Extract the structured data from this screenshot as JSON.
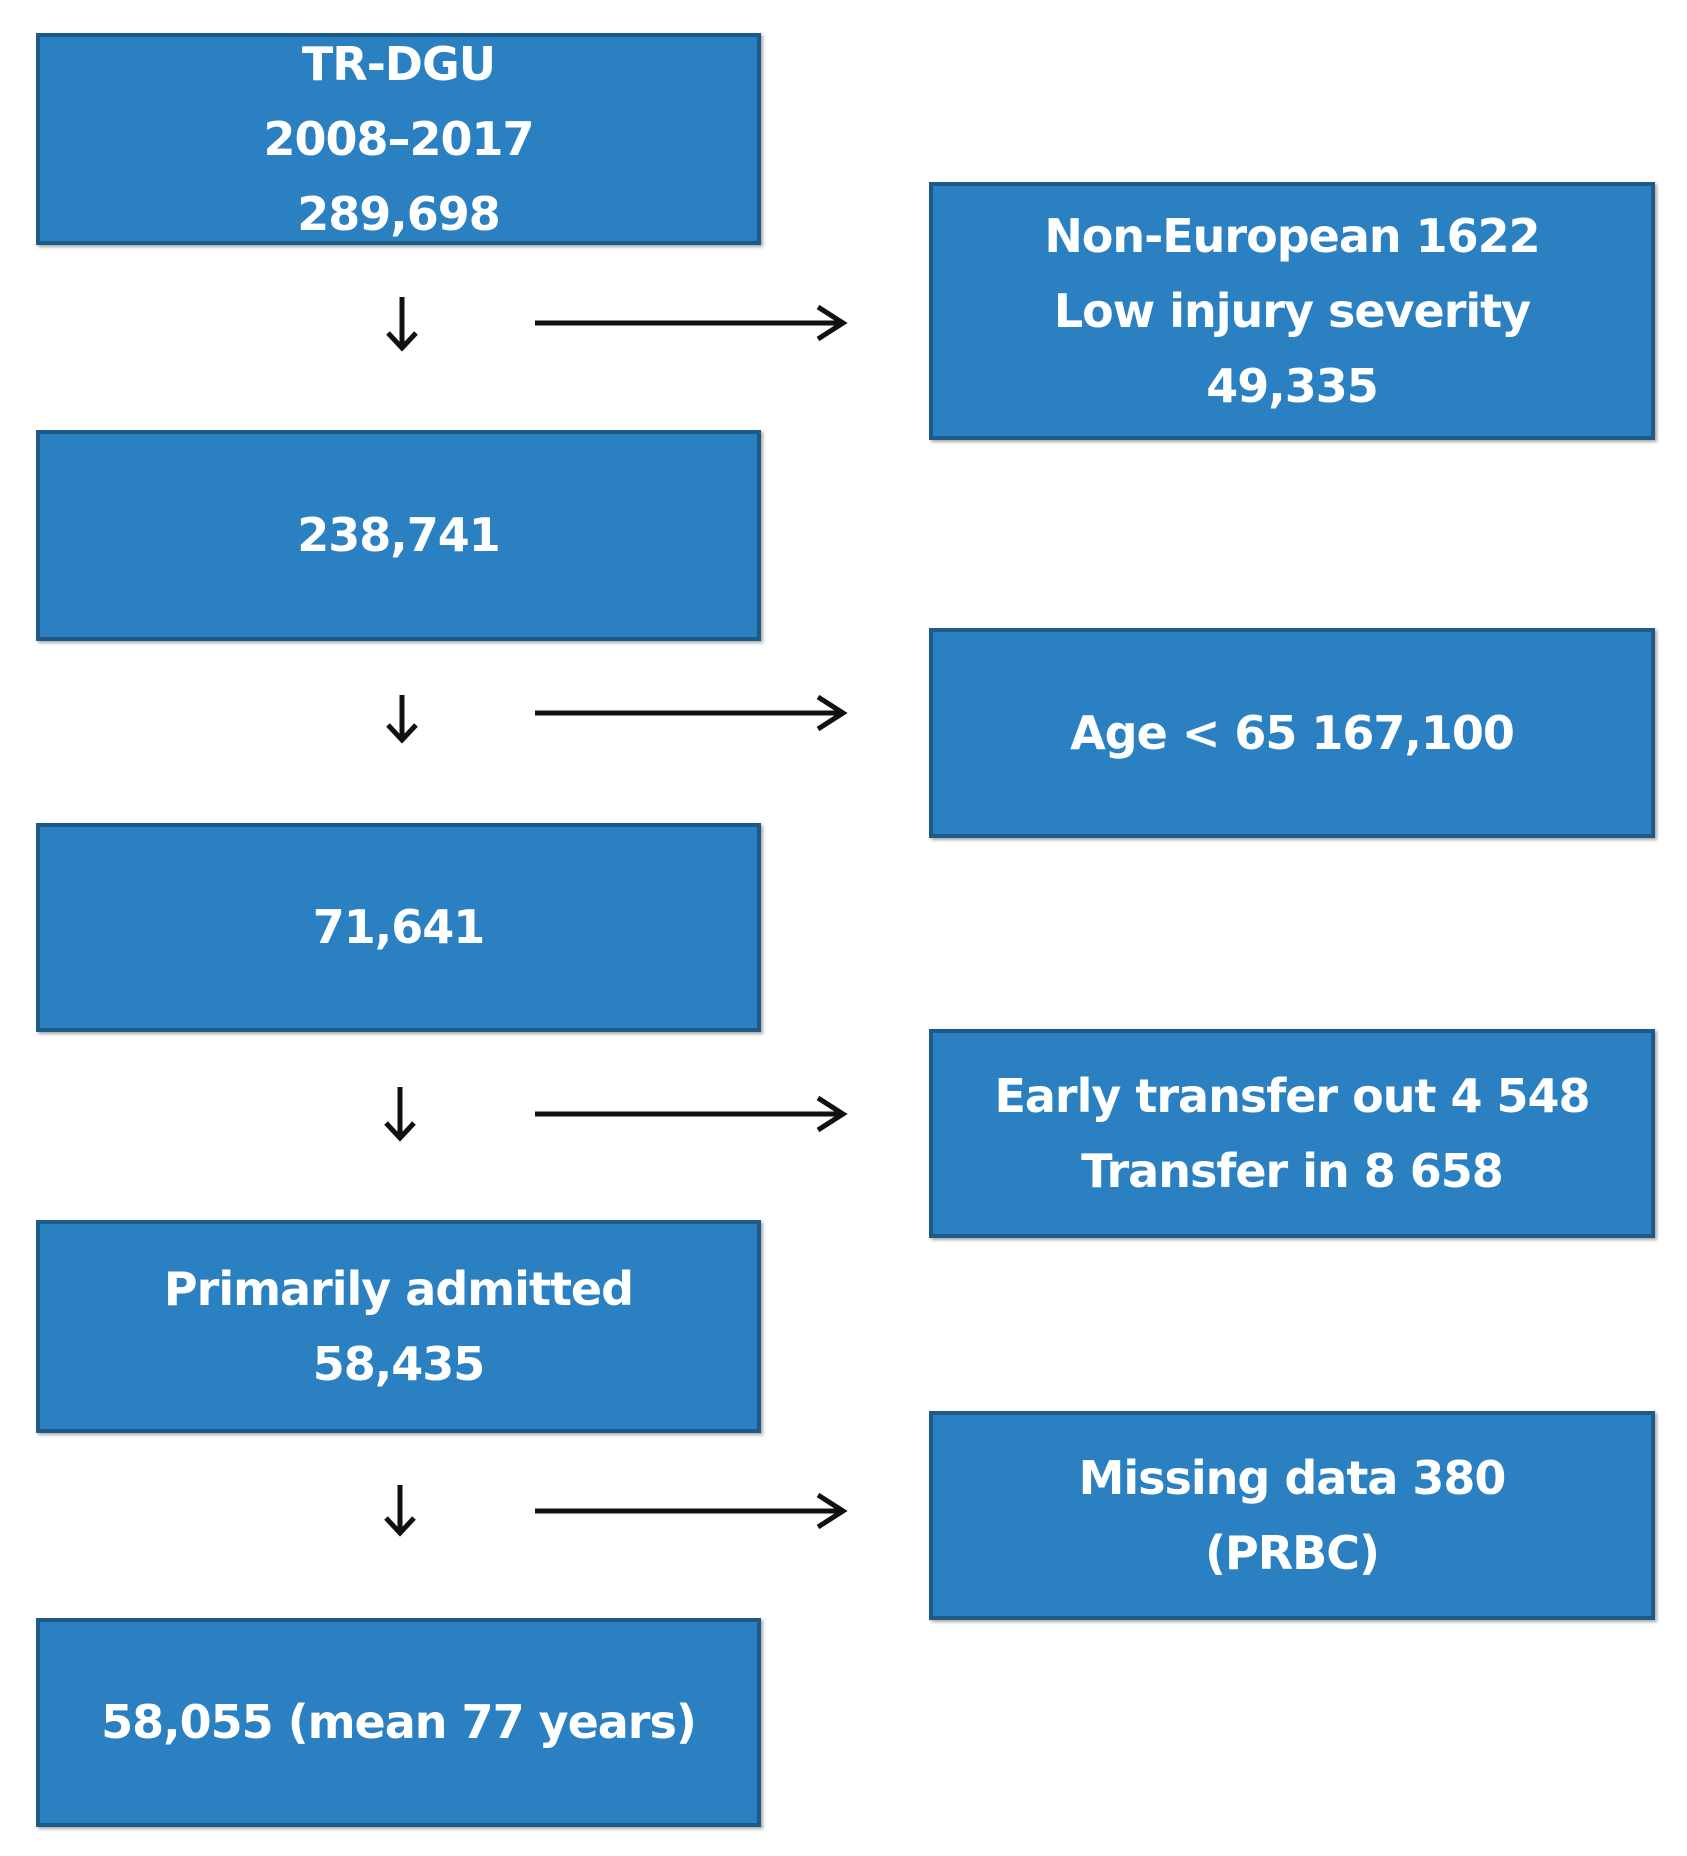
{
  "nodes": [
    {
      "lines": [
        "TR-DGU",
        "2008–2017",
        "289,698"
      ]
    },
    {
      "lines": [
        "238,741"
      ]
    },
    {
      "lines": [
        "71,641"
      ]
    },
    {
      "lines": [
        "Primarily admitted",
        "58,435"
      ]
    },
    {
      "lines": [
        "58,055 (mean 77 years)"
      ]
    }
  ],
  "exclusions": [
    {
      "lines": [
        "Non-European 1622",
        "Low injury severity",
        "49,335"
      ]
    },
    {
      "lines": [
        "Age < 65 167,100"
      ]
    },
    {
      "lines": [
        "Early transfer out 4 548",
        "Transfer in 8 658"
      ]
    },
    {
      "lines": [
        "Missing data 380",
        "(PRBC)"
      ]
    }
  ]
}
